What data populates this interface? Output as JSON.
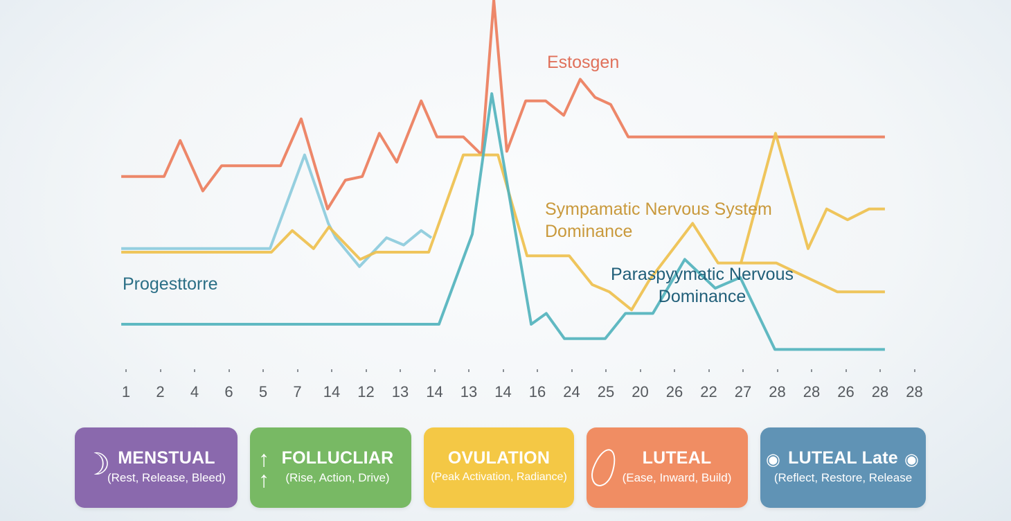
{
  "chart_data": {
    "type": "line",
    "title": "",
    "xlabel": "",
    "ylabel": "",
    "x_tick_labels": [
      "1",
      "2",
      "4",
      "6",
      "5",
      "7",
      "14",
      "12",
      "13",
      "14",
      "13",
      "14",
      "16",
      "24",
      "25",
      "20",
      "26",
      "22",
      "27",
      "28",
      "28",
      "26",
      "28",
      "28"
    ],
    "x_position_note": "point x given as position along the tick sequence (0 = first tick)",
    "y_axis_shown": false,
    "ylim": [
      0,
      100
    ],
    "grid": false,
    "legend": "inline labels",
    "series": [
      {
        "name": "Estosgen",
        "color": "#ec7d5c",
        "label_lines": [
          "Estosgen"
        ],
        "points": [
          [
            -0.14,
            51
          ],
          [
            1.11,
            51
          ],
          [
            1.58,
            61
          ],
          [
            2.24,
            47
          ],
          [
            2.79,
            54
          ],
          [
            4.51,
            54
          ],
          [
            5.11,
            67
          ],
          [
            5.88,
            42
          ],
          [
            6.4,
            50
          ],
          [
            6.89,
            51
          ],
          [
            7.39,
            63
          ],
          [
            7.9,
            55
          ],
          [
            8.61,
            72
          ],
          [
            9.07,
            62
          ],
          [
            9.84,
            62
          ],
          [
            10.38,
            57
          ],
          [
            10.73,
            100
          ],
          [
            11.11,
            58
          ],
          [
            11.66,
            72
          ],
          [
            12.24,
            72
          ],
          [
            12.77,
            68
          ],
          [
            13.25,
            78
          ],
          [
            13.68,
            73
          ],
          [
            14.14,
            71
          ],
          [
            14.65,
            62
          ],
          [
            22.14,
            62
          ]
        ]
      },
      {
        "name": "",
        "color": "#8ccbdc",
        "points": [
          [
            -0.14,
            31
          ],
          [
            4.2,
            31
          ],
          [
            5.21,
            57
          ],
          [
            5.9,
            38
          ],
          [
            6.12,
            34
          ],
          [
            6.81,
            26
          ],
          [
            7.6,
            34
          ],
          [
            8.1,
            32
          ],
          [
            8.61,
            36
          ],
          [
            8.91,
            34
          ]
        ]
      },
      {
        "name": "Sympamatic Nervous System Dominance",
        "color": "#eec04e",
        "label_lines": [
          "Sympamatic Nervous System",
          "Dominance"
        ],
        "points": [
          [
            -0.14,
            30
          ],
          [
            4.24,
            30
          ],
          [
            4.85,
            36
          ],
          [
            5.47,
            31
          ],
          [
            5.92,
            37
          ],
          [
            6.83,
            28
          ],
          [
            7.29,
            30
          ],
          [
            8.83,
            30
          ],
          [
            9.84,
            57
          ],
          [
            10.85,
            57
          ],
          [
            11.7,
            29
          ],
          [
            12.93,
            29
          ],
          [
            13.6,
            21
          ],
          [
            14.1,
            19
          ],
          [
            14.75,
            14
          ],
          [
            15.25,
            22
          ],
          [
            16.53,
            38
          ],
          [
            17.27,
            27
          ],
          [
            18.97,
            27
          ],
          [
            20.75,
            19
          ],
          [
            22.14,
            19
          ]
        ]
      },
      {
        "name": "",
        "color": "#eec04e",
        "points": [
          [
            17.94,
            27
          ],
          [
            18.95,
            63
          ],
          [
            19.9,
            31
          ],
          [
            20.44,
            42
          ],
          [
            21.05,
            39
          ],
          [
            21.68,
            42
          ],
          [
            22.14,
            42
          ]
        ]
      },
      {
        "name": "Paraspyymatic Nervous Dominance",
        "color": "#52b3bd",
        "label_lines": [
          "Paraspyymatic Nervous",
          "Dominance"
        ],
        "points": [
          [
            -0.14,
            10
          ],
          [
            9.13,
            10
          ],
          [
            10.1,
            35
          ],
          [
            10.67,
            74
          ],
          [
            11.82,
            10
          ],
          [
            12.26,
            13
          ],
          [
            12.79,
            6
          ],
          [
            13.98,
            6
          ],
          [
            14.57,
            13
          ],
          [
            15.37,
            13
          ],
          [
            16.3,
            28
          ],
          [
            17.19,
            20
          ],
          [
            17.92,
            23
          ],
          [
            18.93,
            3
          ],
          [
            22.14,
            3
          ]
        ]
      }
    ],
    "annotations": [
      {
        "text": "Progesttorre",
        "color": "#2b6f86"
      }
    ]
  },
  "labels": {
    "estrogen": "Estosgen",
    "sympathetic": "Sympamatic Nervous System\nDominance",
    "parasympathetic": "Paraspyymatic Nervous\nDominance",
    "progesterone": "Progesttorre"
  },
  "phases": [
    {
      "title": "MENSTUAL",
      "subtitle": "(Rest, Release, Bleed)",
      "icon": "moon-icon",
      "color": "#8a69ad"
    },
    {
      "title": "FOLLUCLIAR",
      "subtitle": "(Rise, Action, Drive)",
      "icon": "arrows-up-icon",
      "color": "#78b964"
    },
    {
      "title": "OVULATION",
      "subtitle": "(Peak Activation, Radiance)",
      "icon": "",
      "color": "#f4c845"
    },
    {
      "title": "LUTEAL",
      "subtitle": "(Ease, Inward, Build)",
      "icon": "leaf-icon",
      "color": "#f08d63"
    },
    {
      "title": "LUTEAL Late",
      "subtitle": "(Reflect, Restore, Release",
      "icon": "eye-icon",
      "color": "#6093b5"
    }
  ]
}
